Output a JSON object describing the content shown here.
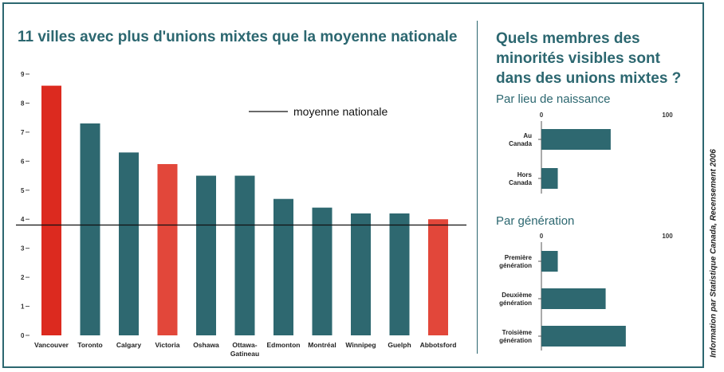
{
  "titles": {
    "main": "11 villes avec plus d'unions mixtes que la moyenne nationale",
    "right": "Quels membres des minorités visibles sont dans des unions mixtes ?",
    "birthplace": "Par lieu de naissance",
    "generation": "Par génération",
    "source": "Information par Statistique Canada, Recensement 2006"
  },
  "colors": {
    "teal": "#2e6870",
    "red_dark": "#dc2a1f",
    "red": "#e2473a",
    "line": "#111111"
  },
  "chart_data": [
    {
      "type": "bar",
      "categories": [
        "Vancouver",
        "Toronto",
        "Calgary",
        "Victoria",
        "Oshawa",
        "Ottawa-Gatineau",
        "Edmonton",
        "Montréal",
        "Winnipeg",
        "Guelph",
        "Abbotsford"
      ],
      "category_lines": [
        [
          "Vancouver"
        ],
        [
          "Toronto"
        ],
        [
          "Calgary"
        ],
        [
          "Victoria"
        ],
        [
          "Oshawa"
        ],
        [
          "Ottawa-",
          "Gatineau"
        ],
        [
          "Edmonton"
        ],
        [
          "Montréal"
        ],
        [
          "Winnipeg"
        ],
        [
          "Guelph"
        ],
        [
          "Abbotsford"
        ]
      ],
      "values": [
        8.6,
        7.3,
        6.3,
        5.9,
        5.5,
        5.5,
        4.7,
        4.4,
        4.2,
        4.2,
        4.0
      ],
      "bar_colors": [
        "#dc2a1f",
        "#2e6870",
        "#2e6870",
        "#e2473a",
        "#2e6870",
        "#2e6870",
        "#2e6870",
        "#2e6870",
        "#2e6870",
        "#2e6870",
        "#e2473a"
      ],
      "reference_line": {
        "value": 3.8,
        "label": "moyenne nationale"
      },
      "yticks": [
        "0",
        "1",
        "2",
        "3",
        "4",
        "5",
        "6",
        "7",
        "8",
        "9"
      ],
      "ylim": [
        0,
        9
      ]
    },
    {
      "type": "bar",
      "orientation": "horizontal",
      "categories": [
        [
          "Au",
          "Canada"
        ],
        [
          "Hors",
          "Canada"
        ]
      ],
      "values": [
        55,
        13
      ],
      "xticks": [
        "0",
        "100"
      ],
      "xlim": [
        0,
        100
      ]
    },
    {
      "type": "bar",
      "orientation": "horizontal",
      "categories": [
        [
          "Première",
          "génération"
        ],
        [
          "Deuxième",
          "génération"
        ],
        [
          "Troisième",
          "génération"
        ]
      ],
      "values": [
        13,
        51,
        67
      ],
      "xticks": [
        "0",
        "100"
      ],
      "xlim": [
        0,
        100
      ]
    }
  ]
}
